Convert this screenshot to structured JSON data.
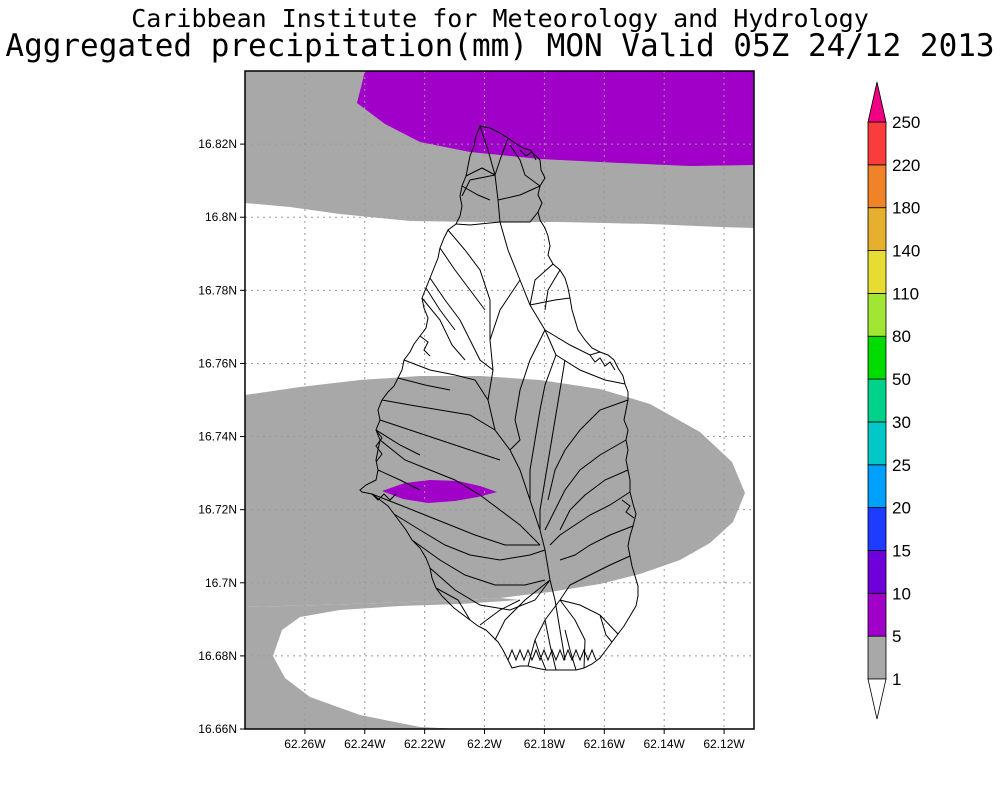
{
  "header": {
    "line1": "Caribbean Institute for Meteorology and Hydrology",
    "line2": "Aggregated precipitation(mm) MON Valid 05Z 24/12 2013"
  },
  "map": {
    "lat_range": [
      16.66,
      16.84
    ],
    "lon_range": [
      -62.28,
      -62.11
    ],
    "lat_ticks": [
      "16.66N",
      "16.68N",
      "16.7N",
      "16.72N",
      "16.74N",
      "16.76N",
      "16.78N",
      "16.8N",
      "16.82N"
    ],
    "lon_ticks": [
      "62.26W",
      "62.24W",
      "62.22W",
      "62.2W",
      "62.18W",
      "62.16W",
      "62.14W",
      "62.12W"
    ],
    "grid": "dotted",
    "fill_colors": {
      "gray_1_5": "#a8a8a8",
      "purple_5_10": "#a000c8"
    }
  },
  "colorbar": {
    "labels": [
      "1",
      "5",
      "10",
      "15",
      "20",
      "25",
      "30",
      "50",
      "80",
      "110",
      "140",
      "180",
      "220",
      "250"
    ],
    "colors": [
      "#ffffff",
      "#a8a8a8",
      "#a000c8",
      "#6e00dc",
      "#1e3cff",
      "#00a0ff",
      "#00c8c8",
      "#00d28c",
      "#00dc00",
      "#a0e632",
      "#e6dc32",
      "#e6af2d",
      "#f08228",
      "#fa3c3c",
      "#f00082"
    ],
    "orientation": "vertical",
    "placement": "right"
  }
}
